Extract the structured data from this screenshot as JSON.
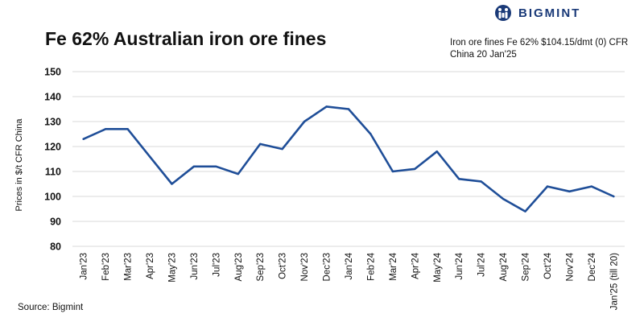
{
  "brand": {
    "name": "BIGMINT",
    "color": "#1a3a78"
  },
  "source": "Source: Bigmint",
  "chart_data": {
    "type": "line",
    "title": "Fe 62% Australian iron ore fines",
    "annotation": "Iron ore fines Fe 62% $104.15/dmt (0) CFR China 20 Jan'25",
    "xlabel": "",
    "ylabel": "Prices in $/t CFR China",
    "ylim": [
      80,
      150
    ],
    "yticks": [
      80,
      90,
      100,
      110,
      120,
      130,
      140,
      150
    ],
    "grid": true,
    "legend": "none",
    "line_color": "#1f4e98",
    "categories": [
      "Jan'23",
      "Feb'23",
      "Mar'23",
      "Apr'23",
      "May'23",
      "Jun'23",
      "Jul'23",
      "Aug'23",
      "Sep'23",
      "Oct'23",
      "Nov'23",
      "Dec'23",
      "Jan'24",
      "Feb'24",
      "Mar'24",
      "Apr'24",
      "May'24",
      "Jun'24",
      "Jul'24",
      "Aug'24",
      "Sep'24",
      "Oct'24",
      "Nov'24",
      "Dec'24",
      "Jan'25 (till 20)"
    ],
    "series": [
      {
        "values": [
          123,
          127,
          127,
          116,
          105,
          112,
          112,
          109,
          121,
          119,
          130,
          136,
          135,
          125,
          110,
          111,
          118,
          107,
          106,
          99,
          94,
          104,
          102,
          104,
          100
        ]
      }
    ]
  }
}
